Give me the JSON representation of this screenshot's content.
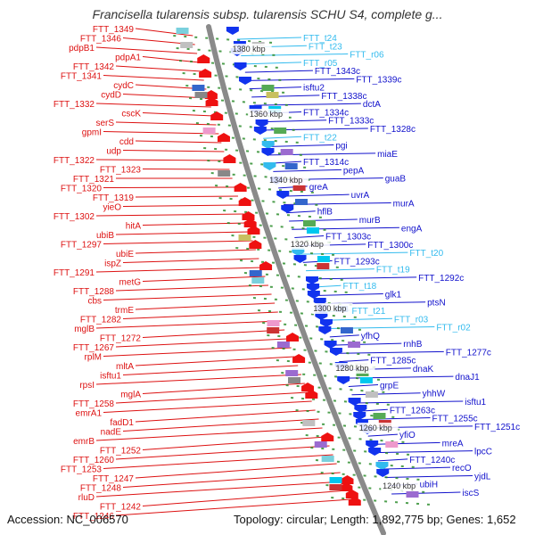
{
  "title": "Francisella tularensis subsp. tularensis SCHU S4, complete g...",
  "footer": {
    "accession": "Accession: NC_006570",
    "topology": "Topology: circular; Length: 1,892,775 bp; Genes: 1,652"
  },
  "colors": {
    "forward_label": "#dd1111",
    "reverse_label": "#1111cc",
    "rna_label": "#33bbee",
    "backbone": "#888888",
    "tick": "#228822"
  },
  "ruler_labels": [
    "1380 kbp",
    "1360 kbp",
    "1340 kbp",
    "1320 kbp",
    "1300 kbp",
    "1280 kbp",
    "1260 kbp",
    "1240 kbp"
  ],
  "left_labels": [
    "FTT_1349",
    "FTT_1346",
    "pdpB1",
    "pdpA1",
    "FTT_1342",
    "FTT_1341",
    "cydC",
    "cydD",
    "FTT_1332",
    "cscK",
    "serS",
    "gpmI",
    "cdd",
    "udp",
    "FTT_1322",
    "FTT_1323",
    "FTT_1321",
    "FTT_1320",
    "FTT_1319",
    "yieO",
    "FTT_1302",
    "hitA",
    "ubiB",
    "FTT_1297",
    "ubiE",
    "ispZ",
    "FTT_1291",
    "metG",
    "FTT_1288",
    "cbs",
    "trmE",
    "FTT_1282",
    "mglB",
    "FTT_1272",
    "FTT_1267",
    "rplM",
    "mltA",
    "isftu1",
    "rpsI",
    "mglA",
    "FTT_1258",
    "emrA1",
    "fadD1",
    "nadE",
    "emrB",
    "FTT_1252",
    "FTT_1260",
    "FTT_1253",
    "FTT_1247",
    "FTT_1248",
    "rluD",
    "FTT_1242",
    "FTT_1246"
  ],
  "right_labels": [
    "FTT_t24",
    "FTT_t23",
    "FTT_r06",
    "FTT_r05",
    "FTT_1343c",
    "FTT_1339c",
    "isftu2",
    "FTT_1338c",
    "dctA",
    "FTT_1334c",
    "FTT_1333c",
    "FTT_1328c",
    "FTT_t22",
    "pgi",
    "miaE",
    "FTT_1314c",
    "pepA",
    "guaB",
    "greA",
    "uvrA",
    "murA",
    "hflB",
    "murB",
    "engA",
    "FTT_1303c",
    "FTT_1300c",
    "FTT_t20",
    "FTT_1293c",
    "FTT_t19",
    "FTT_1292c",
    "FTT_t18",
    "glk1",
    "ptsN",
    "FTT_t21",
    "FTT_r03",
    "FTT_r02",
    "yfhQ",
    "rnhB",
    "FTT_1277c",
    "FTT_1285c",
    "dnaK",
    "dnaJ1",
    "grpE",
    "yhhW",
    "isftu1",
    "FTT_1263c",
    "FTT_1255c",
    "FTT_1251c",
    "yfiO",
    "mreA",
    "lpcC",
    "FTT_1240c",
    "recO",
    "yjdL",
    "ubiH",
    "iscS"
  ]
}
